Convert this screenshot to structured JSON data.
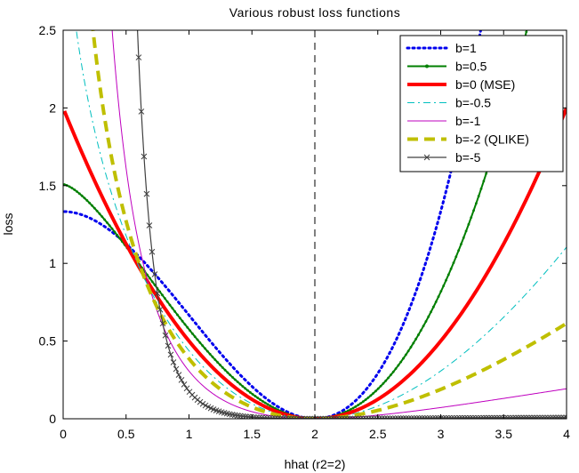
{
  "chart_data": {
    "type": "line",
    "title": "Various robust loss functions",
    "xlabel": "hhat (r2=2)",
    "ylabel": "loss",
    "xlim": [
      0,
      4
    ],
    "ylim": [
      0,
      2.5
    ],
    "x_ticks": [
      "0",
      "0.5",
      "1",
      "1.5",
      "2",
      "2.5",
      "3",
      "3.5",
      "4"
    ],
    "y_ticks": [
      "0",
      "0.5",
      "1",
      "1.5",
      "2",
      "2.5"
    ],
    "r2": 2,
    "vertical_line_x": 2,
    "legend_position": "top-right",
    "grid": false,
    "series": [
      {
        "name": "b=1",
        "b": 1,
        "color": "#0000ee",
        "style": "dotted"
      },
      {
        "name": "b=0.5",
        "b": 0.5,
        "color": "#007f00",
        "style": "solid-dots"
      },
      {
        "name": "b=0 (MSE)",
        "b": 0,
        "color": "#ff0000",
        "style": "thick"
      },
      {
        "name": "b=-0.5",
        "b": -0.5,
        "color": "#00bfbf",
        "style": "dashdot"
      },
      {
        "name": "b=-1",
        "b": -1,
        "color": "#bf00bf",
        "style": "thin"
      },
      {
        "name": "b=-2 (QLIKE)",
        "b": -2,
        "color": "#bfbf00",
        "style": "dashed"
      },
      {
        "name": "b=-5",
        "b": -5,
        "color": "#404040",
        "style": "crosses"
      }
    ]
  }
}
